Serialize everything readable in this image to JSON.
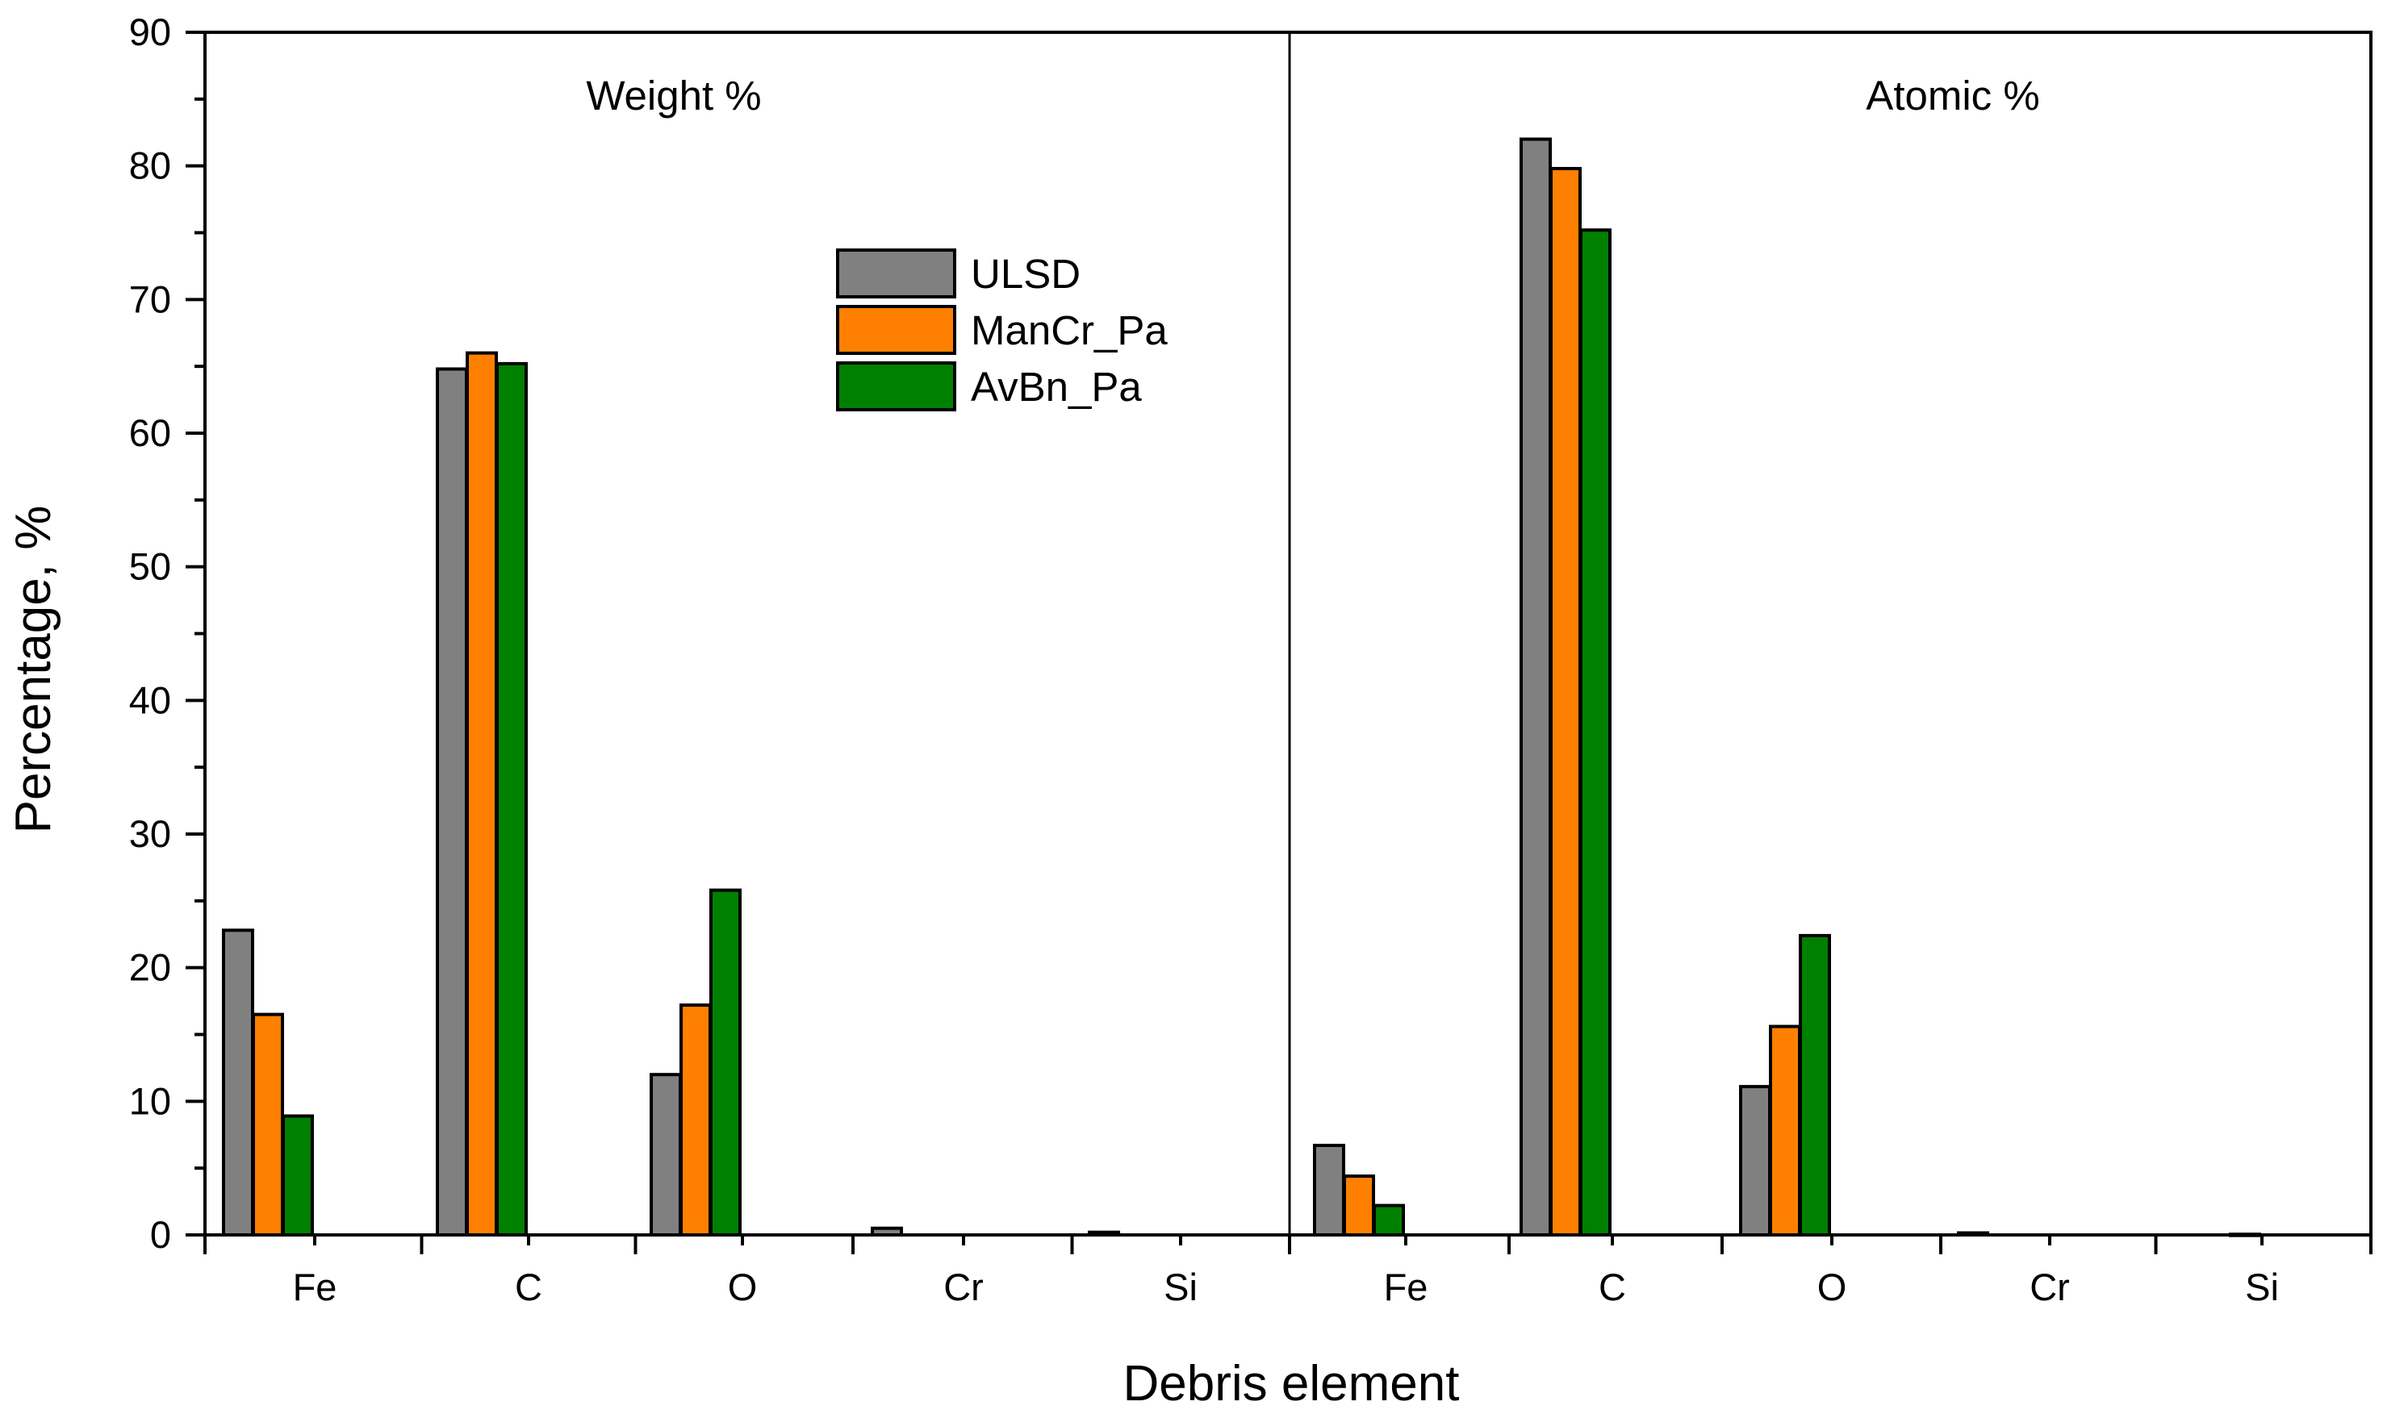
{
  "chart_data": {
    "type": "bar",
    "ylabel": "Percentage, %",
    "xlabel": "Debris element",
    "ylim": [
      0,
      90
    ],
    "yticks": [
      "0",
      "10",
      "20",
      "30",
      "40",
      "50",
      "60",
      "70",
      "80",
      "90"
    ],
    "colors": {
      "ULSD": "#808080",
      "ManCr_Pa": "#FF8000",
      "AvBn_Pa": "#008000"
    },
    "legend": [
      "ULSD",
      "ManCr_Pa",
      "AvBn_Pa"
    ],
    "panels": [
      {
        "label": "Weight %",
        "categories": [
          "Fe",
          "C",
          "O",
          "Cr",
          "Si"
        ],
        "series": [
          {
            "name": "ULSD",
            "values": [
              22.8,
              64.8,
              12.0,
              0.5,
              0.2
            ]
          },
          {
            "name": "ManCr_Pa",
            "values": [
              16.5,
              66.0,
              17.2,
              0.0,
              0.0
            ]
          },
          {
            "name": "AvBn_Pa",
            "values": [
              8.9,
              65.2,
              25.8,
              0.0,
              0.0
            ]
          }
        ]
      },
      {
        "label": "Atomic %",
        "categories": [
          "Fe",
          "C",
          "O",
          "Cr",
          "Si"
        ],
        "series": [
          {
            "name": "ULSD",
            "values": [
              6.7,
              82.0,
              11.1,
              0.15,
              0.0
            ]
          },
          {
            "name": "ManCr_Pa",
            "values": [
              4.4,
              79.8,
              15.6,
              0.0,
              0.0
            ]
          },
          {
            "name": "AvBn_Pa",
            "values": [
              2.2,
              75.2,
              22.4,
              0.0,
              0.05
            ]
          }
        ]
      }
    ]
  }
}
